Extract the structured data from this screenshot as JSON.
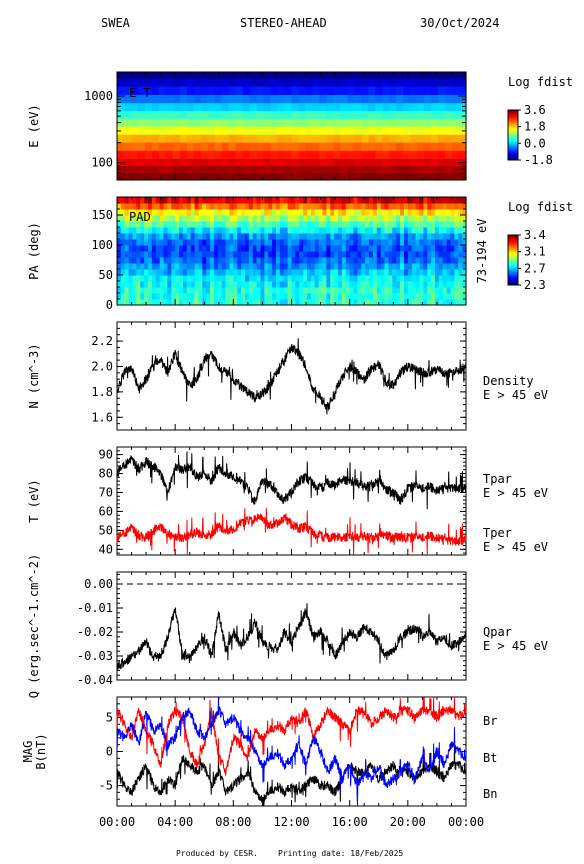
{
  "header": {
    "instrument": "SWEA",
    "spacecraft": "STEREO-AHEAD",
    "date": "30/Oct/2024"
  },
  "footer": {
    "produced": "Produced by CESR.",
    "printing": "Printing date: 18/Feb/2025"
  },
  "x_axis": {
    "ticks": [
      "00:00",
      "04:00",
      "08:00",
      "12:00",
      "16:00",
      "20:00",
      "00:00"
    ]
  },
  "colors": {
    "black": "#000000",
    "red": "#ff0000",
    "blue": "#0000ff"
  },
  "chart_data": [
    {
      "type": "heatmap",
      "panel_label": "E-T",
      "ylabel": "E (eV)",
      "yscale": "log",
      "ylim": [
        55,
        2300
      ],
      "yticks": [
        "1000",
        "100"
      ],
      "x_range_hours": [
        0,
        24
      ],
      "energy_bins": [
        2100,
        1600,
        1200,
        900,
        680,
        520,
        400,
        300,
        230,
        175,
        130,
        100,
        78,
        62
      ],
      "bin_log_fdist": [
        -1.8,
        -1.4,
        -1.0,
        -0.5,
        0.0,
        0.5,
        1.0,
        1.5,
        2.0,
        2.4,
        2.8,
        3.1,
        3.4,
        3.6
      ],
      "colorbar": {
        "title": "Log fdist",
        "ticks": [
          "3.6",
          "1.8",
          "0.0",
          "-1.8"
        ],
        "range": [
          -1.8,
          3.6
        ]
      }
    },
    {
      "type": "heatmap",
      "panel_label": "PAD",
      "ylabel": "PA (deg)",
      "ylim": [
        0,
        180
      ],
      "yticks": [
        "150",
        "100",
        "50",
        "0"
      ],
      "right_label": "73-194 eV",
      "x_range_hours": [
        0,
        24
      ],
      "pitch_angle_bins": [
        5,
        15,
        25,
        35,
        45,
        55,
        65,
        75,
        85,
        95,
        105,
        115,
        125,
        135,
        145,
        155,
        165,
        175
      ],
      "mean_log_fdist_by_bin": [
        2.75,
        2.75,
        2.75,
        2.72,
        2.7,
        2.65,
        2.6,
        2.55,
        2.52,
        2.52,
        2.55,
        2.6,
        2.7,
        2.8,
        2.9,
        3.0,
        3.15,
        3.3
      ],
      "colorbar": {
        "title": "Log fdist",
        "ticks": [
          "3.4",
          "3.1",
          "2.7",
          "2.3"
        ],
        "range": [
          2.3,
          3.4
        ]
      }
    },
    {
      "type": "line",
      "ylabel": "N (cm^-3)",
      "ylim": [
        1.5,
        2.35
      ],
      "yticks": [
        "2.2",
        "2.0",
        "1.8",
        "1.6"
      ],
      "x_range_hours": [
        0,
        24
      ],
      "series": [
        {
          "name": "Density",
          "note": "E > 45 eV",
          "color": "#000000",
          "x": [
            0,
            0.5,
            1,
            1.5,
            2,
            2.5,
            3,
            3.5,
            4,
            4.5,
            5,
            5.5,
            6,
            6.5,
            7,
            7.5,
            8,
            8.5,
            9,
            9.5,
            10,
            10.5,
            11,
            11.5,
            12,
            12.5,
            13,
            13.5,
            14,
            14.5,
            15,
            15.5,
            16,
            16.5,
            17,
            17.5,
            18,
            18.5,
            19,
            19.5,
            20,
            20.5,
            21,
            21.5,
            22,
            22.5,
            23,
            23.5,
            24
          ],
          "y": [
            1.8,
            1.95,
            2.0,
            1.82,
            1.9,
            2.0,
            2.05,
            1.95,
            2.1,
            1.95,
            1.85,
            1.9,
            2.05,
            2.1,
            2.0,
            1.95,
            1.9,
            1.85,
            1.8,
            1.75,
            1.78,
            1.85,
            1.95,
            2.05,
            2.15,
            2.1,
            2.0,
            1.82,
            1.75,
            1.68,
            1.8,
            1.92,
            2.0,
            1.95,
            1.9,
            1.98,
            2.02,
            1.88,
            1.85,
            1.95,
            2.0,
            1.98,
            1.95,
            1.95,
            1.98,
            1.95,
            1.95,
            1.97,
            2.0
          ]
        }
      ]
    },
    {
      "type": "line",
      "ylabel": "T (eV)",
      "ylim": [
        37,
        94
      ],
      "yticks": [
        "90",
        "80",
        "70",
        "60",
        "50",
        "40"
      ],
      "x_range_hours": [
        0,
        24
      ],
      "series": [
        {
          "name": "Tpar",
          "note": "E > 45 eV",
          "color": "#000000",
          "x": [
            0,
            0.5,
            1,
            1.5,
            2,
            2.5,
            3,
            3.5,
            4,
            4.5,
            5,
            5.5,
            6,
            6.5,
            7,
            7.5,
            8,
            8.5,
            9,
            9.5,
            10,
            10.5,
            11,
            11.5,
            12,
            12.5,
            13,
            13.5,
            14,
            14.5,
            15,
            15.5,
            16,
            16.5,
            17,
            17.5,
            18,
            18.5,
            19,
            19.5,
            20,
            20.5,
            21,
            21.5,
            22,
            22.5,
            23,
            23.5,
            24
          ],
          "y": [
            80,
            84,
            88,
            82,
            86,
            84,
            80,
            70,
            84,
            82,
            84,
            78,
            80,
            76,
            83,
            80,
            78,
            76,
            72,
            65,
            76,
            74,
            70,
            66,
            70,
            76,
            78,
            74,
            72,
            75,
            74,
            77,
            76,
            75,
            73,
            74,
            76,
            72,
            70,
            66,
            72,
            74,
            72,
            73,
            71,
            72,
            73,
            72,
            72
          ]
        },
        {
          "name": "Tper",
          "note": "E > 45 eV",
          "color": "#ff0000",
          "x": [
            0,
            0.5,
            1,
            1.5,
            2,
            2.5,
            3,
            3.5,
            4,
            4.5,
            5,
            5.5,
            6,
            6.5,
            7,
            7.5,
            8,
            8.5,
            9,
            9.5,
            10,
            10.5,
            11,
            11.5,
            12,
            12.5,
            13,
            13.5,
            14,
            14.5,
            15,
            15.5,
            16,
            16.5,
            17,
            17.5,
            18,
            18.5,
            19,
            19.5,
            20,
            20.5,
            21,
            21.5,
            22,
            22.5,
            23,
            23.5,
            24
          ],
          "y": [
            46,
            48,
            52,
            47,
            46,
            50,
            52,
            48,
            47,
            46,
            48,
            49,
            47,
            48,
            52,
            50,
            50,
            54,
            55,
            56,
            56,
            52,
            54,
            57,
            53,
            51,
            52,
            48,
            47,
            46,
            47,
            46,
            47,
            46,
            47,
            46,
            47,
            48,
            46,
            47,
            46,
            47,
            46,
            47,
            46,
            45,
            45,
            44,
            45
          ]
        }
      ]
    },
    {
      "type": "line",
      "ylabel": "Q (erg.sec^-1.cm^-2)",
      "ylim": [
        -0.04,
        0.005
      ],
      "yticks": [
        "0.00",
        "-0.01",
        "-0.02",
        "-0.03",
        "-0.04"
      ],
      "reference_line": 0.0,
      "x_range_hours": [
        0,
        24
      ],
      "series": [
        {
          "name": "Qpar",
          "note": "E > 45 eV",
          "color": "#000000",
          "x": [
            0,
            0.5,
            1,
            1.5,
            2,
            2.5,
            3,
            3.5,
            4,
            4.5,
            5,
            5.5,
            6,
            6.5,
            7,
            7.5,
            8,
            8.5,
            9,
            9.5,
            10,
            10.5,
            11,
            11.5,
            12,
            12.5,
            13,
            13.5,
            14,
            14.5,
            15,
            15.5,
            16,
            16.5,
            17,
            17.5,
            18,
            18.5,
            19,
            19.5,
            20,
            20.5,
            21,
            21.5,
            22,
            22.5,
            23,
            23.5,
            24
          ],
          "y": [
            -0.034,
            -0.033,
            -0.03,
            -0.028,
            -0.024,
            -0.031,
            -0.03,
            -0.022,
            -0.01,
            -0.03,
            -0.031,
            -0.026,
            -0.022,
            -0.03,
            -0.012,
            -0.028,
            -0.02,
            -0.026,
            -0.022,
            -0.016,
            -0.024,
            -0.026,
            -0.028,
            -0.02,
            -0.024,
            -0.018,
            -0.012,
            -0.022,
            -0.02,
            -0.024,
            -0.03,
            -0.025,
            -0.02,
            -0.022,
            -0.018,
            -0.02,
            -0.024,
            -0.03,
            -0.028,
            -0.022,
            -0.02,
            -0.018,
            -0.022,
            -0.02,
            -0.024,
            -0.022,
            -0.026,
            -0.024,
            -0.02
          ]
        }
      ]
    },
    {
      "type": "line",
      "ylabel": "MAG B(nT)",
      "ylim": [
        -8,
        8
      ],
      "yticks": [
        "5",
        "0",
        "-5"
      ],
      "x_range_hours": [
        0,
        24
      ],
      "series": [
        {
          "name": "Br",
          "color": "#000000",
          "x": [
            0,
            0.5,
            1,
            1.5,
            2,
            2.5,
            3,
            3.5,
            4,
            4.5,
            5,
            5.5,
            6,
            6.5,
            7,
            7.5,
            8,
            8.5,
            9,
            9.5,
            10,
            10.5,
            11,
            11.5,
            12,
            12.5,
            13,
            13.5,
            14,
            14.5,
            15,
            15.5,
            16,
            16.5,
            17,
            17.5,
            18,
            18.5,
            19,
            19.5,
            20,
            20.5,
            21,
            21.5,
            22,
            22.5,
            23,
            23.5,
            24
          ],
          "y": [
            -3,
            -5,
            -6,
            -4,
            -2,
            -5,
            -6,
            -4,
            -5,
            -1,
            -2,
            -3,
            -2,
            -5,
            -3,
            -6,
            -5,
            -4,
            -3,
            -6,
            -7,
            -6,
            -5,
            -6,
            -5,
            -6,
            -5,
            -4,
            -5,
            -5,
            -6,
            -4,
            -2,
            -3,
            -3,
            -2,
            -4,
            -3,
            -2,
            -3,
            -3,
            -4,
            -3,
            -2,
            -3,
            -4,
            -2,
            -2,
            -3
          ]
        },
        {
          "name": "Bt",
          "color": "#ff0000",
          "x": [
            0,
            0.5,
            1,
            1.5,
            2,
            2.5,
            3,
            3.5,
            4,
            4.5,
            5,
            5.5,
            6,
            6.5,
            7,
            7.5,
            8,
            8.5,
            9,
            9.5,
            10,
            10.5,
            11,
            11.5,
            12,
            12.5,
            13,
            13.5,
            14,
            14.5,
            15,
            15.5,
            16,
            16.5,
            17,
            17.5,
            18,
            18.5,
            19,
            19.5,
            20,
            20.5,
            21,
            21.5,
            22,
            22.5,
            23,
            23.5,
            24
          ],
          "y": [
            6,
            4,
            2,
            6,
            3,
            1,
            -2,
            4,
            6,
            5,
            0,
            -2,
            1,
            6,
            -1,
            -3,
            2,
            1,
            -1,
            3,
            2,
            3,
            4,
            3,
            5,
            4,
            6,
            2,
            4,
            6,
            5,
            4,
            3,
            6,
            6,
            4,
            5,
            6,
            5,
            6,
            6,
            5,
            6,
            6,
            5,
            6,
            6,
            5,
            6
          ]
        },
        {
          "name": "Bn",
          "color": "#0000ff",
          "x": [
            0,
            0.5,
            1,
            1.5,
            2,
            2.5,
            3,
            3.5,
            4,
            4.5,
            5,
            5.5,
            6,
            6.5,
            7,
            7.5,
            8,
            8.5,
            9,
            9.5,
            10,
            10.5,
            11,
            11.5,
            12,
            12.5,
            13,
            13.5,
            14,
            14.5,
            15,
            15.5,
            16,
            16.5,
            17,
            17.5,
            18,
            18.5,
            19,
            19.5,
            20,
            20.5,
            21,
            21.5,
            22,
            22.5,
            23,
            23.5,
            24
          ],
          "y": [
            3,
            2,
            4,
            1,
            6,
            3,
            4,
            1,
            2,
            5,
            6,
            3,
            2,
            4,
            6,
            4,
            5,
            3,
            2,
            0,
            -2,
            -1,
            0,
            -2,
            -1,
            1,
            -2,
            2,
            0,
            -3,
            -1,
            -4,
            -2,
            -5,
            -3,
            -4,
            -2,
            -5,
            -4,
            -3,
            -2,
            -4,
            -1,
            -3,
            0,
            -2,
            1,
            0,
            -1
          ]
        }
      ]
    }
  ]
}
